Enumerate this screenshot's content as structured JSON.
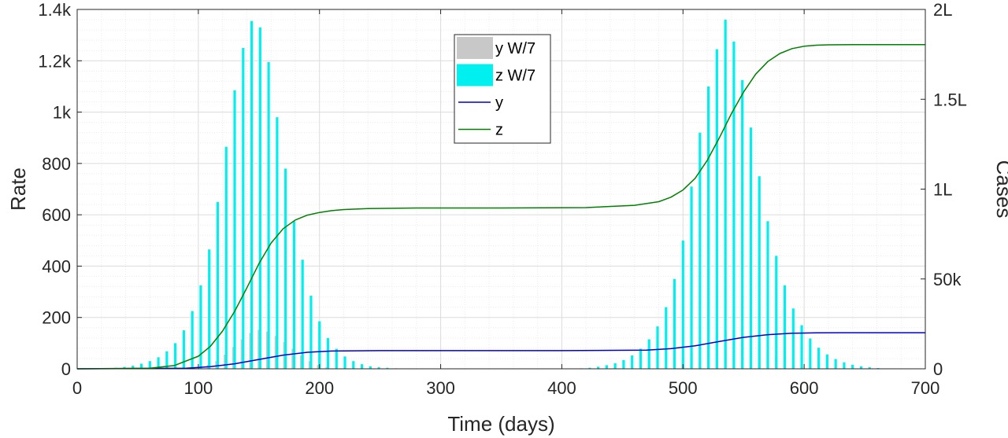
{
  "chart_data": {
    "type": "bar",
    "xlabel": "Time (days)",
    "ylabel_left": "Rate",
    "ylabel_right": "Cases",
    "xlim": [
      0,
      700
    ],
    "ylim_left": [
      0,
      1400
    ],
    "ylim_right": [
      0,
      200000
    ],
    "x_ticks": [
      0,
      100,
      200,
      300,
      400,
      500,
      600,
      700
    ],
    "x_tick_labels": [
      "0",
      "100",
      "200",
      "300",
      "400",
      "500",
      "600",
      "700"
    ],
    "y_left_ticks": [
      0,
      200,
      400,
      600,
      800,
      1000,
      1200,
      1400
    ],
    "y_left_tick_labels": [
      "0",
      "200",
      "400",
      "600",
      "800",
      "1k",
      "1.2k",
      "1.4k"
    ],
    "y_right_ticks": [
      0,
      50000,
      100000,
      150000,
      200000
    ],
    "y_right_tick_labels": [
      "0",
      "50k",
      "1L",
      "1.5L",
      "2L"
    ],
    "grid": true,
    "minor_grid": true,
    "legend_position": "top-center",
    "bar_series": [
      {
        "name": "y W/7",
        "color": "#c8c8c8",
        "axis": "left",
        "x": [
          95,
          101,
          108,
          115,
          122,
          129,
          136,
          143,
          150,
          157,
          164,
          171,
          178,
          185,
          192,
          199,
          206,
          500,
          507,
          514,
          521,
          528,
          535,
          542,
          549,
          556,
          563,
          570,
          577,
          584,
          591,
          598
        ],
        "values": [
          3,
          7,
          15,
          30,
          55,
          85,
          115,
          140,
          152,
          145,
          128,
          105,
          78,
          52,
          30,
          15,
          6,
          45,
          62,
          85,
          110,
          132,
          148,
          150,
          140,
          120,
          96,
          72,
          50,
          30,
          16,
          7
        ]
      },
      {
        "name": "z W/7",
        "color": "#00f0f0",
        "axis": "left",
        "x": [
          25,
          32,
          39,
          46,
          53,
          60,
          67,
          74,
          81,
          88,
          95,
          102,
          109,
          116,
          123,
          130,
          137,
          144,
          151,
          158,
          165,
          172,
          179,
          186,
          193,
          200,
          207,
          214,
          221,
          228,
          235,
          242,
          249,
          256,
          263,
          270,
          416,
          423,
          430,
          437,
          444,
          451,
          458,
          465,
          472,
          479,
          486,
          493,
          500,
          507,
          514,
          521,
          528,
          535,
          542,
          549,
          556,
          563,
          570,
          577,
          584,
          591,
          598,
          605,
          612,
          619,
          626,
          633,
          640,
          647,
          654,
          661
        ],
        "values": [
          2,
          4,
          7,
          12,
          20,
          30,
          45,
          68,
          100,
          150,
          225,
          325,
          465,
          650,
          865,
          1085,
          1250,
          1355,
          1330,
          1195,
          980,
          780,
          575,
          425,
          285,
          185,
          120,
          78,
          48,
          30,
          18,
          10,
          6,
          4,
          2,
          1,
          2,
          4,
          8,
          14,
          22,
          34,
          52,
          78,
          115,
          165,
          240,
          350,
          500,
          710,
          920,
          1100,
          1245,
          1360,
          1275,
          1125,
          940,
          750,
          575,
          440,
          325,
          235,
          170,
          118,
          82,
          56,
          38,
          25,
          16,
          10,
          6,
          3
        ]
      }
    ],
    "line_series": [
      {
        "name": "y",
        "color": "#0000cc",
        "axis": "right",
        "x": [
          0,
          90,
          110,
          130,
          150,
          170,
          190,
          210,
          250,
          300,
          400,
          470,
          490,
          510,
          530,
          550,
          570,
          590,
          610,
          630,
          700
        ],
        "values": [
          0,
          300,
          1200,
          2800,
          5200,
          7600,
          9200,
          9900,
          10100,
          10100,
          10100,
          10400,
          11200,
          12800,
          15200,
          17500,
          19000,
          19800,
          20000,
          20100,
          20100
        ]
      },
      {
        "name": "z",
        "color": "#008000",
        "axis": "right",
        "x": [
          0,
          60,
          80,
          100,
          110,
          120,
          130,
          140,
          150,
          160,
          170,
          180,
          190,
          200,
          210,
          220,
          240,
          280,
          350,
          420,
          460,
          480,
          490,
          500,
          510,
          520,
          530,
          540,
          550,
          560,
          570,
          580,
          590,
          600,
          610,
          620,
          640,
          700
        ],
        "values": [
          0,
          300,
          1800,
          7000,
          12500,
          21000,
          32000,
          45000,
          58500,
          70000,
          78000,
          82800,
          85500,
          87000,
          88000,
          88600,
          89200,
          89500,
          89500,
          89700,
          91000,
          93000,
          95500,
          99500,
          106000,
          116000,
          128500,
          142000,
          154000,
          164000,
          171000,
          175500,
          178200,
          179500,
          180100,
          180300,
          180400,
          180400
        ]
      }
    ],
    "legend": [
      {
        "label": "y W/7",
        "kind": "patch",
        "color": "#c8c8c8"
      },
      {
        "label": "z W/7",
        "kind": "patch",
        "color": "#00f0f0"
      },
      {
        "label": "y",
        "kind": "line",
        "color": "#0000cc"
      },
      {
        "label": "z",
        "kind": "line",
        "color": "#008000"
      }
    ]
  }
}
